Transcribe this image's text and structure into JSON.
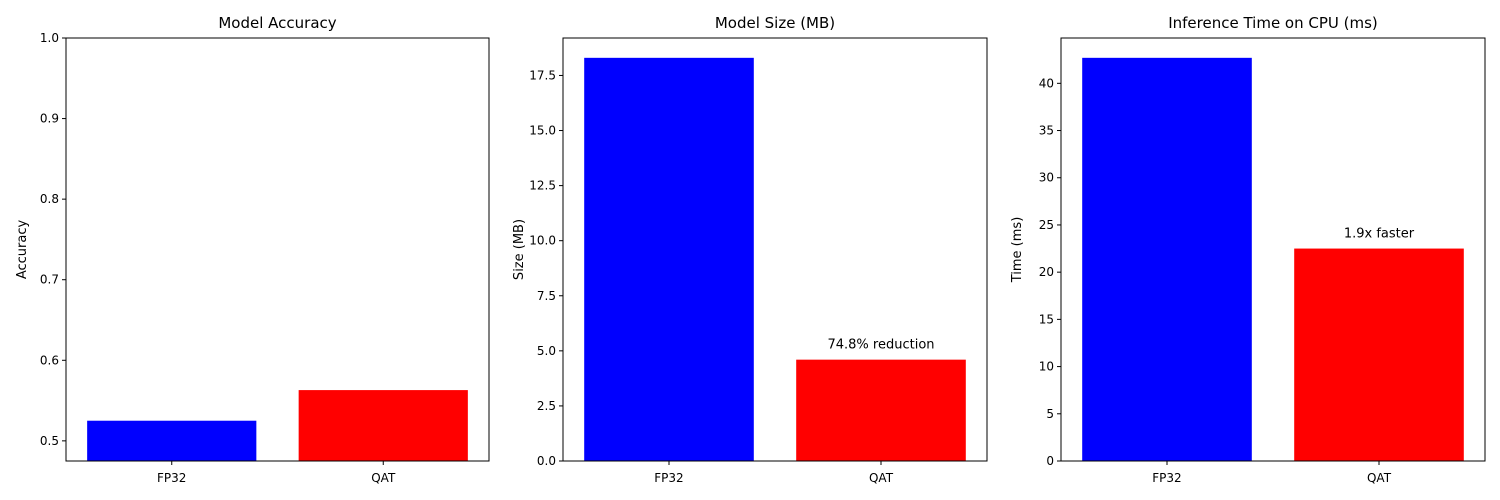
{
  "chart_data": [
    {
      "type": "bar",
      "title": "Model Accuracy",
      "xlabel": "",
      "ylabel": "Accuracy",
      "categories": [
        "FP32",
        "QAT"
      ],
      "values": [
        0.525,
        0.563
      ],
      "colors": [
        "#0000ff",
        "#ff0000"
      ],
      "ylim": [
        0.475,
        1.0
      ],
      "yticks": [
        "0.5",
        "0.6",
        "0.7",
        "0.8",
        "0.9",
        "1.0"
      ],
      "annotations": [],
      "grid": false,
      "legend": "none"
    },
    {
      "type": "bar",
      "title": "Model Size (MB)",
      "xlabel": "",
      "ylabel": "Size (MB)",
      "categories": [
        "FP32",
        "QAT"
      ],
      "values": [
        18.3,
        4.6
      ],
      "colors": [
        "#0000ff",
        "#ff0000"
      ],
      "ylim": [
        0,
        19.2
      ],
      "yticks": [
        "0.0",
        "2.5",
        "5.0",
        "7.5",
        "10.0",
        "12.5",
        "15.0",
        "17.5"
      ],
      "annotations": [
        {
          "category": "QAT",
          "text": "74.8% reduction"
        }
      ],
      "grid": false,
      "legend": "none"
    },
    {
      "type": "bar",
      "title": "Inference Time on CPU (ms)",
      "xlabel": "",
      "ylabel": "Time (ms)",
      "categories": [
        "FP32",
        "QAT"
      ],
      "values": [
        42.7,
        22.5
      ],
      "colors": [
        "#0000ff",
        "#ff0000"
      ],
      "ylim": [
        0,
        44.8
      ],
      "yticks": [
        "0",
        "5",
        "10",
        "15",
        "20",
        "25",
        "30",
        "35",
        "40"
      ],
      "annotations": [
        {
          "category": "QAT",
          "text": "1.9x faster"
        }
      ],
      "grid": false,
      "legend": "none"
    }
  ]
}
